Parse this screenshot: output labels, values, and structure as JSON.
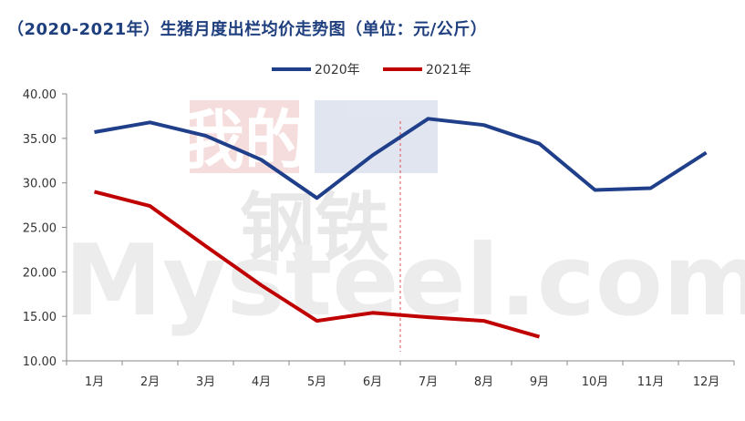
{
  "chart_data": {
    "type": "line",
    "title": "（2020-2021年）生猪月度出栏均价走势图（单位：元/公斤）",
    "categories": [
      "1月",
      "2月",
      "3月",
      "4月",
      "5月",
      "6月",
      "7月",
      "8月",
      "9月",
      "10月",
      "11月",
      "12月"
    ],
    "y_tick_labels": [
      "10.00",
      "15.00",
      "20.00",
      "25.00",
      "30.00",
      "35.00",
      "40.00"
    ],
    "ylim": [
      10,
      40
    ],
    "grid": false,
    "legend_position": "top-center",
    "series": [
      {
        "name": "2020年",
        "color": "#1f3f8a",
        "values": [
          35.7,
          36.8,
          35.3,
          32.6,
          28.3,
          33.1,
          37.2,
          36.5,
          34.4,
          29.2,
          29.4,
          33.4
        ]
      },
      {
        "name": "2021年",
        "color": "#c00000",
        "values": [
          29.0,
          27.4,
          22.9,
          18.5,
          14.5,
          15.4,
          14.9,
          14.5,
          12.7,
          null,
          null,
          null
        ]
      }
    ],
    "divider_after_category": "6月",
    "watermark": {
      "line1": "我的",
      "line2": "钢铁",
      "line3": "Mysteel.com"
    }
  }
}
